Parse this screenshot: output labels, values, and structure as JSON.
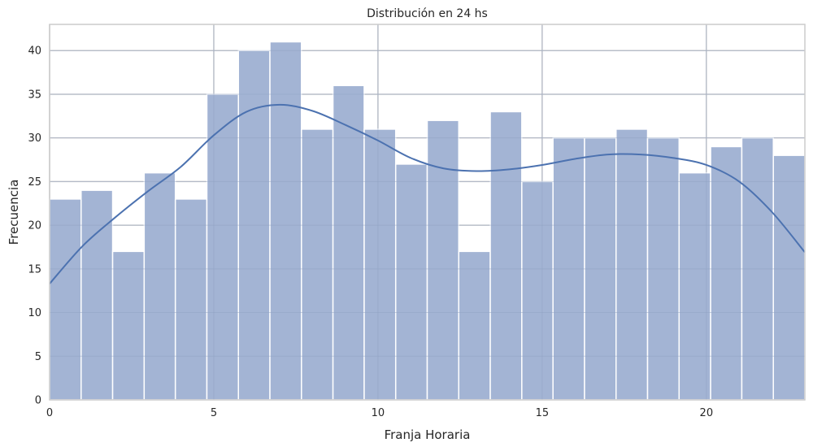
{
  "chart_data": {
    "type": "bar",
    "title": "Distribución en 24 hs",
    "xlabel": "Franja Horaria",
    "ylabel": "Frecuencia",
    "xlim": [
      0,
      23
    ],
    "ylim": [
      0,
      43
    ],
    "xticks": [
      0,
      5,
      10,
      15,
      20
    ],
    "yticks": [
      0,
      5,
      10,
      15,
      20,
      25,
      30,
      35,
      40
    ],
    "grid": true,
    "bar_color": "#a3b4d4",
    "line_color": "#4c72b0",
    "grid_color": "#cccccc",
    "bins": [
      {
        "x0": 0.0,
        "x1": 0.96,
        "count": 23
      },
      {
        "x0": 0.96,
        "x1": 1.92,
        "count": 24
      },
      {
        "x0": 1.92,
        "x1": 2.88,
        "count": 17
      },
      {
        "x0": 2.88,
        "x1": 3.83,
        "count": 26
      },
      {
        "x0": 3.83,
        "x1": 4.79,
        "count": 23
      },
      {
        "x0": 4.79,
        "x1": 5.75,
        "count": 35
      },
      {
        "x0": 5.75,
        "x1": 6.71,
        "count": 40
      },
      {
        "x0": 6.71,
        "x1": 7.67,
        "count": 41
      },
      {
        "x0": 7.67,
        "x1": 8.63,
        "count": 31
      },
      {
        "x0": 8.63,
        "x1": 9.58,
        "count": 36
      },
      {
        "x0": 9.58,
        "x1": 10.54,
        "count": 31
      },
      {
        "x0": 10.54,
        "x1": 11.5,
        "count": 27
      },
      {
        "x0": 11.5,
        "x1": 12.46,
        "count": 32
      },
      {
        "x0": 12.46,
        "x1": 13.42,
        "count": 17
      },
      {
        "x0": 13.42,
        "x1": 14.38,
        "count": 33
      },
      {
        "x0": 14.38,
        "x1": 15.33,
        "count": 25
      },
      {
        "x0": 15.33,
        "x1": 16.29,
        "count": 30
      },
      {
        "x0": 16.29,
        "x1": 17.25,
        "count": 30
      },
      {
        "x0": 17.25,
        "x1": 18.21,
        "count": 31
      },
      {
        "x0": 18.21,
        "x1": 19.17,
        "count": 30
      },
      {
        "x0": 19.17,
        "x1": 20.13,
        "count": 26
      },
      {
        "x0": 20.13,
        "x1": 21.08,
        "count": 29
      },
      {
        "x0": 21.08,
        "x1": 22.04,
        "count": 30
      },
      {
        "x0": 22.04,
        "x1": 23.0,
        "count": 28
      }
    ],
    "kde": {
      "x": [
        0,
        1,
        2,
        3,
        4,
        5,
        6,
        7,
        8,
        9,
        10,
        11,
        12,
        13,
        14,
        15,
        16,
        17,
        18,
        19,
        20,
        21,
        22,
        23
      ],
      "y": [
        13.3,
        17.6,
        20.9,
        23.9,
        26.7,
        30.3,
        33.0,
        33.8,
        33.1,
        31.5,
        29.7,
        27.7,
        26.5,
        26.2,
        26.4,
        26.9,
        27.6,
        28.1,
        28.1,
        27.7,
        26.9,
        25.0,
        21.5,
        16.9
      ]
    }
  }
}
